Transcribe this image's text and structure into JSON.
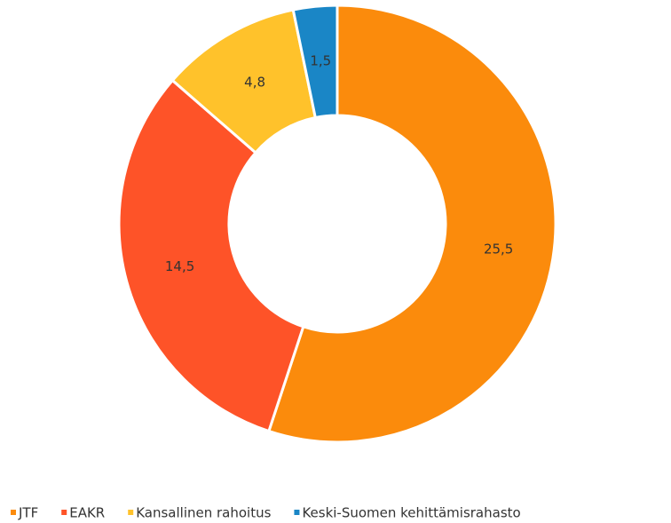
{
  "chart_data": {
    "type": "donut",
    "categories": [
      "JTF",
      "EAKR",
      "Kansallinen rahoitus",
      "Keski-Suomen kehittämisrahasto"
    ],
    "values": [
      25.5,
      14.5,
      4.8,
      1.5
    ],
    "value_labels": [
      "25,5",
      "14,5",
      "4,8",
      "1,5"
    ],
    "colors": [
      "#fb8b0c",
      "#fe5328",
      "#ffc22b",
      "#1a86c6"
    ],
    "legend": "bottom"
  }
}
